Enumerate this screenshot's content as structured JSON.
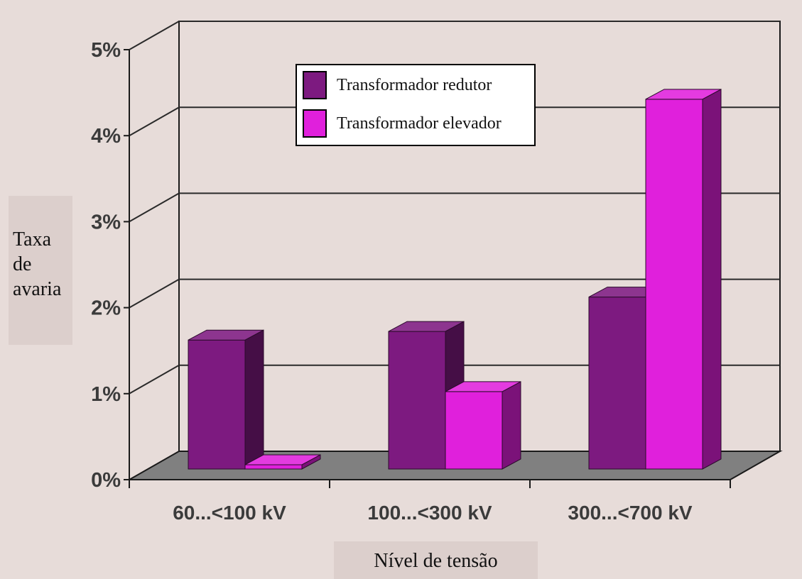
{
  "chart_data": {
    "type": "bar",
    "title": "",
    "xlabel": "Nível de tensão",
    "ylabel": "Taxa\nde\navaria",
    "categories": [
      "60...<100 kV",
      "100...<300 kV",
      "300...<700 kV"
    ],
    "series": [
      {
        "name": "Transformador redutor",
        "values": [
          1.5,
          1.6,
          2.0
        ],
        "color": "#7d1a80"
      },
      {
        "name": "Transformador elevador",
        "values": [
          0.05,
          0.9,
          4.3
        ],
        "color": "#e020dc"
      }
    ],
    "ylim": [
      0,
      5
    ],
    "yticks": [
      "0%",
      "1%",
      "2%",
      "3%",
      "4%",
      "5%"
    ],
    "grid": true,
    "style": "3d",
    "legend_position": "top-center"
  }
}
